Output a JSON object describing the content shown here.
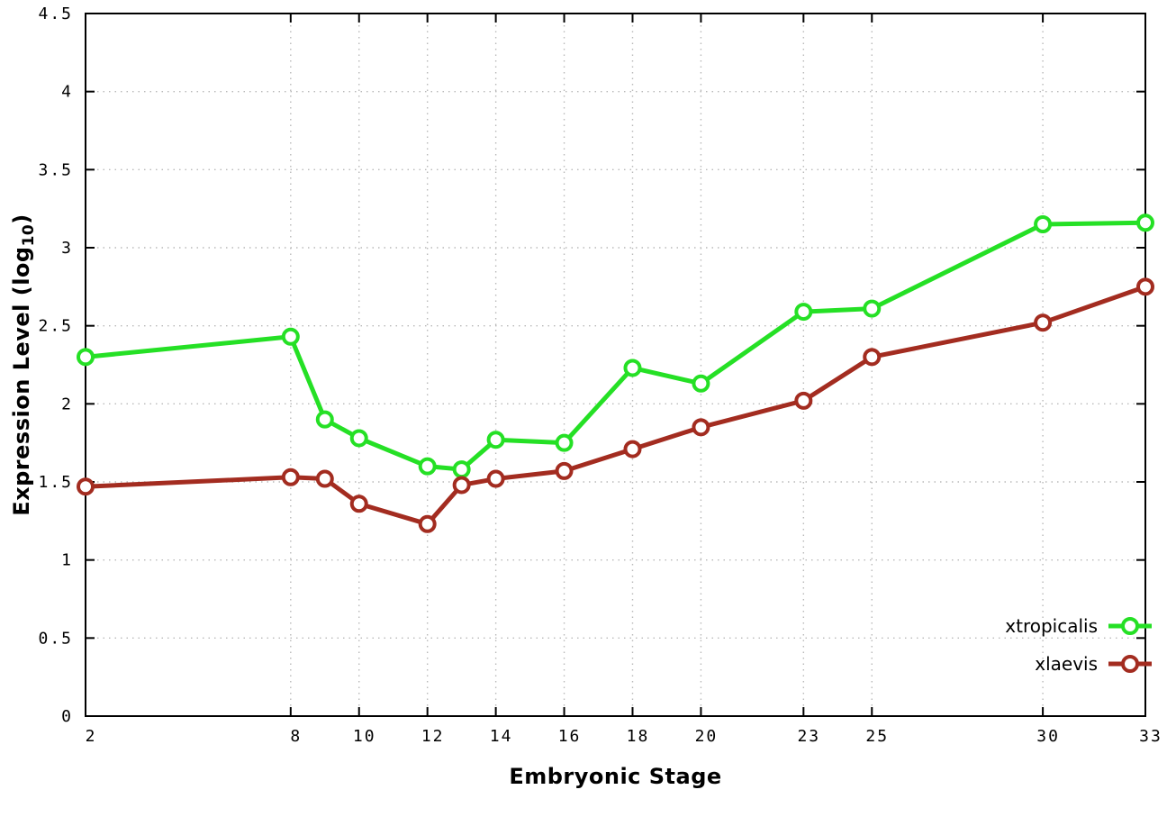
{
  "chart_data": {
    "type": "line",
    "title": "",
    "xlabel": "Embryonic Stage",
    "ylabel": {
      "prefix": "Expression Level (log",
      "sub": "10",
      "suffix": ")"
    },
    "xlim": [
      2,
      33
    ],
    "ylim": [
      0,
      4.5
    ],
    "grid": true,
    "legend_position": "bottom-right",
    "x": [
      2,
      8,
      9,
      10,
      12,
      13,
      14,
      16,
      18,
      20,
      23,
      25,
      30,
      33
    ],
    "xticks": {
      "values": [
        2,
        8,
        10,
        12,
        14,
        16,
        18,
        20,
        23,
        25,
        30,
        33
      ],
      "labels": [
        "2",
        "8",
        "10",
        "12",
        "14",
        "16",
        "18",
        "20",
        "23",
        "25",
        "30",
        "33"
      ]
    },
    "yticks": {
      "values": [
        0,
        0.5,
        1,
        1.5,
        2,
        2.5,
        3,
        3.5,
        4,
        4.5
      ],
      "labels": [
        "0",
        "0.5",
        "1",
        "1.5",
        "2",
        "2.5",
        "3",
        "3.5",
        "4",
        "4.5"
      ]
    },
    "series": [
      {
        "name": "xtropicalis",
        "color": "#25e025",
        "values": [
          2.3,
          2.43,
          1.9,
          1.78,
          1.6,
          1.58,
          1.77,
          1.75,
          2.23,
          2.13,
          2.59,
          2.61,
          3.15,
          3.16
        ]
      },
      {
        "name": "xlaevis",
        "color": "#a32c20",
        "values": [
          1.47,
          1.53,
          1.52,
          1.36,
          1.23,
          1.48,
          1.52,
          1.57,
          1.71,
          1.85,
          2.02,
          2.3,
          2.52,
          2.75
        ]
      }
    ]
  },
  "colors": {
    "background": "#ffffff",
    "grid": "#b9b9b9",
    "axis": "#000000",
    "marker_fill": "#ffffff"
  }
}
